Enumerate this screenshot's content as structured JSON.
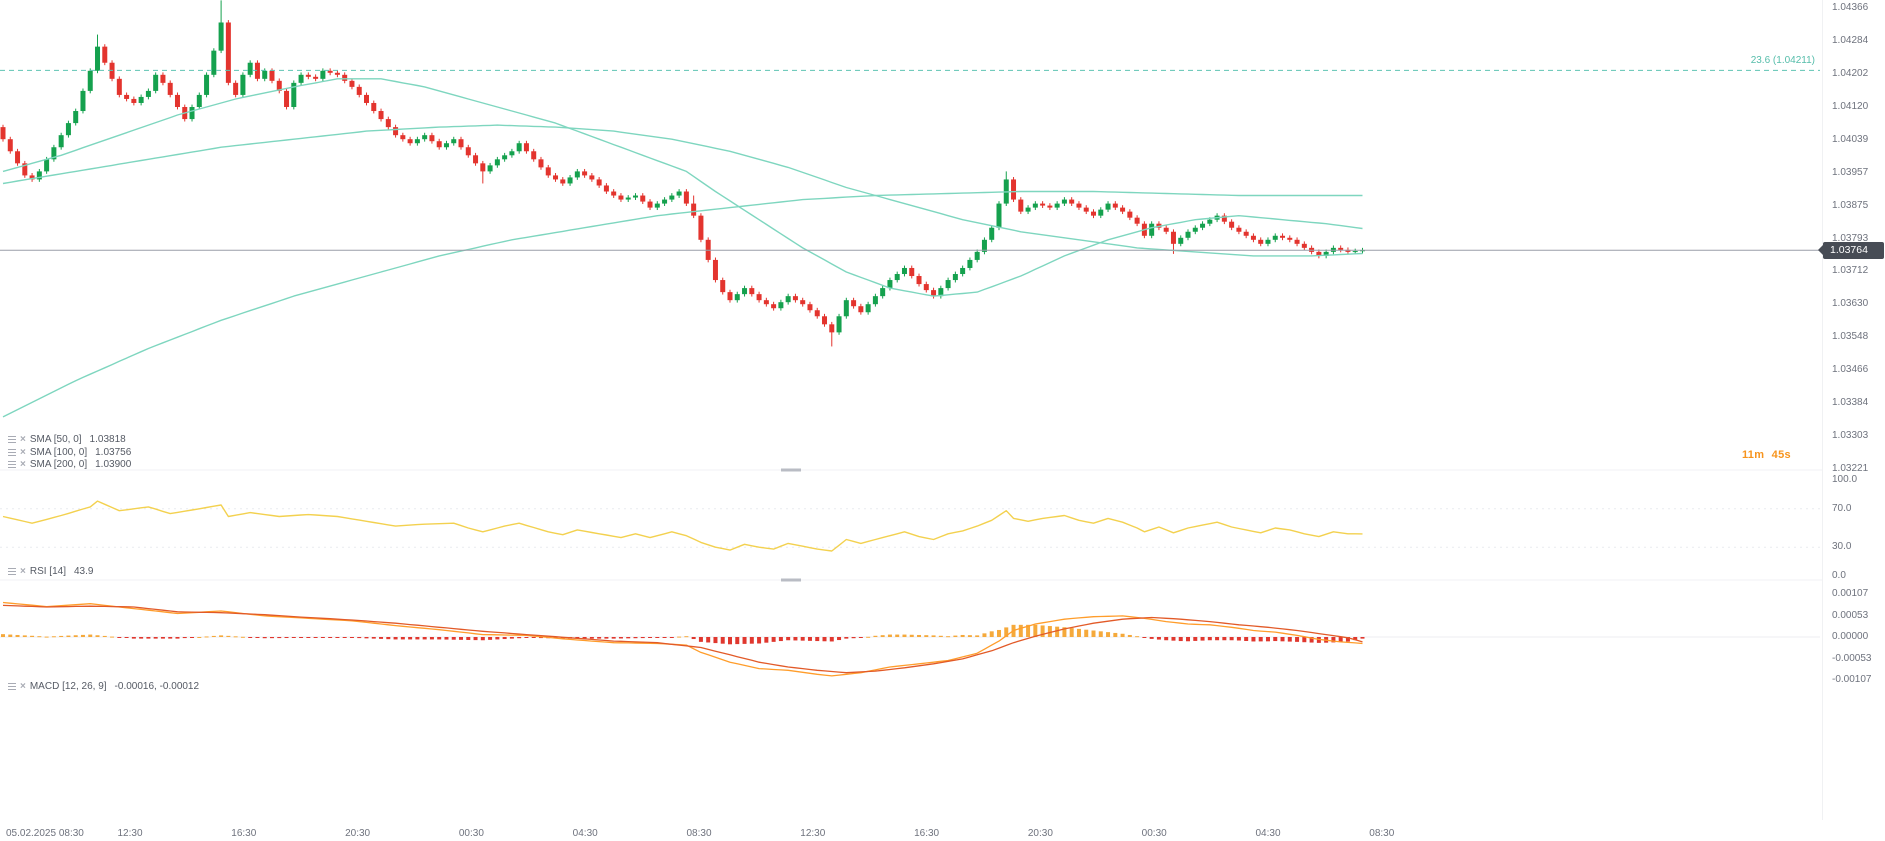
{
  "colors": {
    "up": "#15a14e",
    "down": "#e3342e",
    "sma": "#7ed6bf",
    "fib": "#5ec4b2",
    "price_line": "#9a9ea8",
    "tag_bg": "#474c55",
    "rsi": "#f3d14f",
    "macd_line": "#ff9d2b",
    "macd_signal": "#e25a28",
    "hist_up": "#f5a93b",
    "hist_down": "#e0372e",
    "timer": "#f7941d",
    "axis_text": "#6e727d"
  },
  "legends": {
    "sma50": {
      "name": "SMA [50, 0]",
      "value": "1.03818"
    },
    "sma100": {
      "name": "SMA [100, 0]",
      "value": "1.03756"
    },
    "sma200": {
      "name": "SMA [200, 0]",
      "value": "1.03900"
    },
    "rsi": {
      "name": "RSI [14]",
      "value": "43.9"
    },
    "macd": {
      "name": "MACD [12, 26, 9]",
      "value": "-0.00016, -0.00012"
    }
  },
  "timer": {
    "minutes": "11m",
    "seconds": "45s"
  },
  "price_tag": "1.03764",
  "fib_label": "23.6 (1.04211)",
  "time_axis": {
    "labels": [
      "05.02.2025 08:30",
      "12:30",
      "16:30",
      "20:30",
      "00:30",
      "04:30",
      "08:30",
      "12:30",
      "16:30",
      "20:30",
      "00:30",
      "04:30",
      "08:30"
    ]
  },
  "chart_data": [
    {
      "type": "candlestick",
      "title": "Candlestick price panel with SMA 50/100/200 overlays",
      "y_axis": {
        "labels": [
          "1.04366",
          "1.04284",
          "1.04202",
          "1.04120",
          "1.04039",
          "1.03957",
          "1.03875",
          "1.03793",
          "1.03712",
          "1.03630",
          "1.03548",
          "1.03466",
          "1.03384",
          "1.03303",
          "1.03221"
        ]
      },
      "ylim": [
        1.03221,
        1.04366
      ],
      "levels": {
        "fib_value": 1.04211,
        "fib_label": "23.6 (1.04211)",
        "current_price": 1.03764
      },
      "first_open": 1.0407,
      "wick": 6e-05,
      "extremes": {
        "13": {
          "h": 1.043
        },
        "30": {
          "h": 1.04385
        },
        "66": {
          "l": 1.0393
        },
        "95": {
          "h": 1.039
        },
        "114": {
          "l": 1.03525
        },
        "138": {
          "h": 1.0396
        },
        "161": {
          "l": 1.03755
        }
      },
      "closes": [
        1.0404,
        1.0401,
        1.0398,
        1.0395,
        1.0394,
        1.0396,
        1.0399,
        1.0402,
        1.0405,
        1.0408,
        1.0411,
        1.0416,
        1.0421,
        1.0427,
        1.0423,
        1.0419,
        1.0415,
        1.0414,
        1.0413,
        1.04145,
        1.0416,
        1.042,
        1.0418,
        1.0415,
        1.0412,
        1.0409,
        1.0412,
        1.0415,
        1.042,
        1.0426,
        1.0433,
        1.0418,
        1.0415,
        1.042,
        1.0423,
        1.0419,
        1.0421,
        1.04185,
        1.0416,
        1.0412,
        1.0418,
        1.042,
        1.04195,
        1.0419,
        1.0421,
        1.04205,
        1.042,
        1.04185,
        1.0417,
        1.0415,
        1.0413,
        1.0411,
        1.0409,
        1.0407,
        1.0405,
        1.0404,
        1.0403,
        1.0404,
        1.0405,
        1.04035,
        1.0402,
        1.0403,
        1.0404,
        1.0402,
        1.04,
        1.0398,
        1.0396,
        1.03975,
        1.0399,
        1.04,
        1.0401,
        1.0403,
        1.0401,
        1.0399,
        1.0397,
        1.0395,
        1.0394,
        1.0393,
        1.03945,
        1.0396,
        1.0395,
        1.0394,
        1.03925,
        1.0391,
        1.039,
        1.0389,
        1.03895,
        1.039,
        1.03885,
        1.0387,
        1.0388,
        1.0389,
        1.039,
        1.0391,
        1.0388,
        1.0385,
        1.0379,
        1.0374,
        1.0369,
        1.0366,
        1.0364,
        1.03655,
        1.0367,
        1.03655,
        1.0364,
        1.0363,
        1.0362,
        1.03635,
        1.0365,
        1.0364,
        1.0363,
        1.03615,
        1.036,
        1.0358,
        1.0356,
        1.036,
        1.0364,
        1.03625,
        1.0361,
        1.0363,
        1.0365,
        1.0367,
        1.0369,
        1.03705,
        1.0372,
        1.037,
        1.0368,
        1.03665,
        1.0365,
        1.0367,
        1.0369,
        1.03705,
        1.0372,
        1.0374,
        1.0376,
        1.0379,
        1.0382,
        1.0388,
        1.0394,
        1.0389,
        1.0386,
        1.0387,
        1.0388,
        1.03875,
        1.0387,
        1.0388,
        1.0389,
        1.0388,
        1.0387,
        1.0386,
        1.0385,
        1.03865,
        1.0388,
        1.0387,
        1.0386,
        1.03845,
        1.0383,
        1.038,
        1.0383,
        1.0382,
        1.0381,
        1.0378,
        1.03795,
        1.0381,
        1.0382,
        1.0383,
        1.0384,
        1.0385,
        1.03835,
        1.0382,
        1.0381,
        1.038,
        1.0379,
        1.0378,
        1.0379,
        1.038,
        1.03795,
        1.0379,
        1.0378,
        1.0377,
        1.0376,
        1.0375,
        1.0376,
        1.0377,
        1.03765,
        1.0376,
        1.03762,
        1.03764
      ],
      "overlays": [
        {
          "name": "SMA 50",
          "value": 1.03818,
          "points": [
            [
              0,
              1.0396
            ],
            [
              8,
              1.04
            ],
            [
              16,
              1.0405
            ],
            [
              24,
              1.041
            ],
            [
              32,
              1.0414
            ],
            [
              40,
              1.0417
            ],
            [
              46,
              1.0419
            ],
            [
              52,
              1.0419
            ],
            [
              58,
              1.0417
            ],
            [
              64,
              1.0414
            ],
            [
              70,
              1.0411
            ],
            [
              76,
              1.0408
            ],
            [
              82,
              1.0404
            ],
            [
              88,
              1.04
            ],
            [
              94,
              1.0396
            ],
            [
              98,
              1.0391
            ],
            [
              104,
              1.0384
            ],
            [
              110,
              1.0377
            ],
            [
              116,
              1.0371
            ],
            [
              122,
              1.0367
            ],
            [
              128,
              1.0365
            ],
            [
              134,
              1.0366
            ],
            [
              140,
              1.037
            ],
            [
              146,
              1.0375
            ],
            [
              152,
              1.0379
            ],
            [
              158,
              1.0382
            ],
            [
              164,
              1.0384
            ],
            [
              170,
              1.0385
            ],
            [
              176,
              1.0384
            ],
            [
              182,
              1.0383
            ],
            [
              187,
              1.03818
            ]
          ]
        },
        {
          "name": "SMA 100",
          "value": 1.03756,
          "points": [
            [
              0,
              1.0393
            ],
            [
              10,
              1.0396
            ],
            [
              20,
              1.0399
            ],
            [
              30,
              1.0402
            ],
            [
              40,
              1.0404
            ],
            [
              50,
              1.0406
            ],
            [
              60,
              1.0407
            ],
            [
              68,
              1.04075
            ],
            [
              76,
              1.0407
            ],
            [
              84,
              1.0406
            ],
            [
              92,
              1.0404
            ],
            [
              100,
              1.0401
            ],
            [
              108,
              1.0397
            ],
            [
              116,
              1.0392
            ],
            [
              124,
              1.0388
            ],
            [
              132,
              1.0384
            ],
            [
              140,
              1.0381
            ],
            [
              148,
              1.0379
            ],
            [
              156,
              1.0377
            ],
            [
              164,
              1.0376
            ],
            [
              172,
              1.0375
            ],
            [
              180,
              1.0375
            ],
            [
              187,
              1.03756
            ]
          ]
        },
        {
          "name": "SMA 200",
          "value": 1.039,
          "points": [
            [
              0,
              1.0335
            ],
            [
              10,
              1.0344
            ],
            [
              20,
              1.0352
            ],
            [
              30,
              1.0359
            ],
            [
              40,
              1.0365
            ],
            [
              50,
              1.037
            ],
            [
              60,
              1.0375
            ],
            [
              70,
              1.0379
            ],
            [
              80,
              1.0382
            ],
            [
              90,
              1.0385
            ],
            [
              100,
              1.0387
            ],
            [
              110,
              1.0389
            ],
            [
              120,
              1.039
            ],
            [
              130,
              1.03905
            ],
            [
              140,
              1.0391
            ],
            [
              150,
              1.0391
            ],
            [
              160,
              1.03905
            ],
            [
              170,
              1.039
            ],
            [
              180,
              1.039
            ],
            [
              187,
              1.039
            ]
          ]
        }
      ]
    },
    {
      "type": "line",
      "title": "RSI [14]",
      "current_value": 43.9,
      "y_axis": {
        "labels": [
          "100.0",
          "70.0",
          "30.0",
          "0.0"
        ]
      },
      "ylim": [
        0,
        100
      ],
      "points": [
        [
          0,
          62
        ],
        [
          4,
          55
        ],
        [
          8,
          63
        ],
        [
          12,
          72
        ],
        [
          13,
          78
        ],
        [
          16,
          68
        ],
        [
          20,
          72
        ],
        [
          23,
          65
        ],
        [
          27,
          70
        ],
        [
          30,
          74
        ],
        [
          31,
          62
        ],
        [
          34,
          66
        ],
        [
          38,
          62
        ],
        [
          42,
          64
        ],
        [
          46,
          62
        ],
        [
          50,
          57
        ],
        [
          54,
          52
        ],
        [
          58,
          54
        ],
        [
          62,
          55
        ],
        [
          64,
          50
        ],
        [
          66,
          46
        ],
        [
          69,
          52
        ],
        [
          71,
          55
        ],
        [
          75,
          46
        ],
        [
          77,
          43
        ],
        [
          79,
          48
        ],
        [
          82,
          44
        ],
        [
          85,
          40
        ],
        [
          87,
          44
        ],
        [
          89,
          40
        ],
        [
          92,
          46
        ],
        [
          94,
          42
        ],
        [
          96,
          35
        ],
        [
          98,
          30
        ],
        [
          100,
          27
        ],
        [
          102,
          33
        ],
        [
          104,
          30
        ],
        [
          106,
          28
        ],
        [
          108,
          34
        ],
        [
          110,
          31
        ],
        [
          112,
          28
        ],
        [
          114,
          26
        ],
        [
          116,
          38
        ],
        [
          118,
          34
        ],
        [
          120,
          38
        ],
        [
          122,
          42
        ],
        [
          124,
          46
        ],
        [
          126,
          41
        ],
        [
          128,
          38
        ],
        [
          130,
          44
        ],
        [
          132,
          47
        ],
        [
          134,
          52
        ],
        [
          136,
          58
        ],
        [
          138,
          68
        ],
        [
          139,
          60
        ],
        [
          141,
          57
        ],
        [
          143,
          60
        ],
        [
          146,
          63
        ],
        [
          148,
          58
        ],
        [
          150,
          55
        ],
        [
          152,
          60
        ],
        [
          154,
          56
        ],
        [
          156,
          50
        ],
        [
          157,
          46
        ],
        [
          159,
          51
        ],
        [
          161,
          45
        ],
        [
          163,
          50
        ],
        [
          165,
          53
        ],
        [
          167,
          56
        ],
        [
          169,
          51
        ],
        [
          171,
          48
        ],
        [
          173,
          45
        ],
        [
          175,
          50
        ],
        [
          177,
          48
        ],
        [
          179,
          44
        ],
        [
          181,
          41
        ],
        [
          183,
          46
        ],
        [
          185,
          44
        ],
        [
          187,
          43.9
        ]
      ]
    },
    {
      "type": "macd",
      "title": "MACD [12, 26, 9]",
      "current_values": [
        -0.00016,
        -0.00012
      ],
      "y_axis": {
        "labels": [
          "0.00107",
          "0.00053",
          "0.00000",
          "-0.00053",
          "-0.00107"
        ]
      },
      "ylim": [
        -0.00107,
        0.00107
      ],
      "macd_points": [
        [
          0,
          0.00085
        ],
        [
          6,
          0.00075
        ],
        [
          12,
          0.00082
        ],
        [
          18,
          0.0007
        ],
        [
          24,
          0.00058
        ],
        [
          30,
          0.00064
        ],
        [
          36,
          0.00052
        ],
        [
          42,
          0.00046
        ],
        [
          48,
          0.0004
        ],
        [
          54,
          0.00028
        ],
        [
          60,
          0.00018
        ],
        [
          66,
          6e-05
        ],
        [
          72,
          4e-05
        ],
        [
          78,
          -6e-05
        ],
        [
          84,
          -0.00014
        ],
        [
          90,
          -0.00016
        ],
        [
          94,
          -0.0002
        ],
        [
          96,
          -0.00038
        ],
        [
          100,
          -0.00062
        ],
        [
          104,
          -0.00078
        ],
        [
          108,
          -0.00082
        ],
        [
          112,
          -0.00092
        ],
        [
          114,
          -0.00096
        ],
        [
          118,
          -0.00088
        ],
        [
          122,
          -0.00074
        ],
        [
          126,
          -0.00066
        ],
        [
          130,
          -0.00058
        ],
        [
          134,
          -0.0004
        ],
        [
          137,
          -0.0001
        ],
        [
          139,
          0.00016
        ],
        [
          142,
          0.00032
        ],
        [
          146,
          0.00044
        ],
        [
          150,
          0.0005
        ],
        [
          154,
          0.00052
        ],
        [
          157,
          0.00046
        ],
        [
          160,
          0.00038
        ],
        [
          163,
          0.00032
        ],
        [
          166,
          0.0003
        ],
        [
          169,
          0.00024
        ],
        [
          172,
          0.00016
        ],
        [
          175,
          0.00012
        ],
        [
          178,
          4e-05
        ],
        [
          181,
          -6e-05
        ],
        [
          184,
          -0.00012
        ],
        [
          187,
          -0.00016
        ]
      ],
      "signal_points": [
        [
          0,
          0.00078
        ],
        [
          6,
          0.00074
        ],
        [
          12,
          0.00076
        ],
        [
          18,
          0.00074
        ],
        [
          24,
          0.00062
        ],
        [
          30,
          0.0006
        ],
        [
          36,
          0.00055
        ],
        [
          42,
          0.00048
        ],
        [
          48,
          0.00042
        ],
        [
          54,
          0.00034
        ],
        [
          60,
          0.00024
        ],
        [
          66,
          0.00014
        ],
        [
          72,
          6e-05
        ],
        [
          78,
          -2e-05
        ],
        [
          84,
          -0.0001
        ],
        [
          90,
          -0.00014
        ],
        [
          96,
          -0.00026
        ],
        [
          100,
          -0.00044
        ],
        [
          104,
          -0.00062
        ],
        [
          108,
          -0.00074
        ],
        [
          112,
          -0.00082
        ],
        [
          116,
          -0.00088
        ],
        [
          120,
          -0.00084
        ],
        [
          124,
          -0.00076
        ],
        [
          128,
          -0.00066
        ],
        [
          132,
          -0.00054
        ],
        [
          136,
          -0.00034
        ],
        [
          139,
          -0.00014
        ],
        [
          142,
          2e-05
        ],
        [
          146,
          0.0002
        ],
        [
          150,
          0.00034
        ],
        [
          154,
          0.00044
        ],
        [
          158,
          0.00048
        ],
        [
          162,
          0.00044
        ],
        [
          166,
          0.00038
        ],
        [
          170,
          0.0003
        ],
        [
          174,
          0.00024
        ],
        [
          178,
          0.00016
        ],
        [
          182,
          6e-05
        ],
        [
          185,
          -2e-05
        ],
        [
          187,
          -0.00012
        ]
      ]
    }
  ]
}
